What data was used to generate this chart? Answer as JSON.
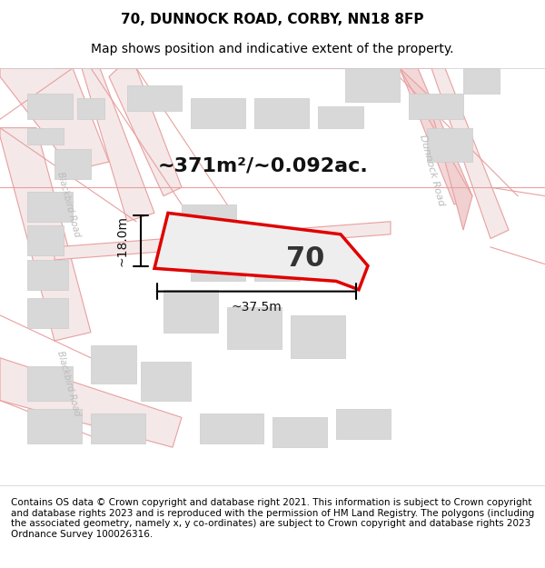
{
  "title_line1": "70, DUNNOCK ROAD, CORBY, NN18 8FP",
  "title_line2": "Map shows position and indicative extent of the property.",
  "footer_text": "Contains OS data © Crown copyright and database right 2021. This information is subject to Crown copyright and database rights 2023 and is reproduced with the permission of HM Land Registry. The polygons (including the associated geometry, namely x, y co-ordinates) are subject to Crown copyright and database rights 2023 Ordnance Survey 100026316.",
  "area_label": "~371m²/~0.092ac.",
  "plot_number": "70",
  "dim_width": "~37.5m",
  "dim_height": "~18.0m",
  "road_label_right": "Dunnock Road",
  "road_label_left": "Blackbird Road",
  "road_label_bottom": "Blackbird Road",
  "bg_color": "#f5f5f5",
  "map_bg": "#f0eeee",
  "plot_fill": "#e8e8e8",
  "plot_outline": "#e00000",
  "road_color": "#e8a0a0",
  "building_fill": "#d8d8d8",
  "building_outline": "#aaaaaa",
  "title_fontsize": 11,
  "subtitle_fontsize": 10,
  "footer_fontsize": 7.5
}
